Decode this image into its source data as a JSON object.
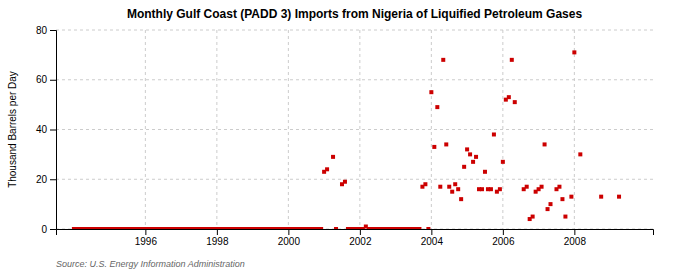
{
  "chart_data": {
    "type": "scatter",
    "title": "Monthly Gulf Coast (PADD 3) Imports from Nigeria of Liquified Petroleum Gases",
    "y_label": "Thousand Barrels per Day",
    "source": "Source: U.S. Energy Information Administration",
    "color": "#cc0000",
    "marker": "square",
    "grid": true,
    "xlim": [
      1993.5,
      2010.2
    ],
    "ylim": [
      0,
      80
    ],
    "xticks": [
      1996,
      1998,
      2000,
      2002,
      2004,
      2006,
      2008
    ],
    "yticks": [
      0,
      20,
      40,
      60,
      80
    ],
    "x": [
      1994.0,
      1994.083,
      1994.167,
      1994.25,
      1994.333,
      1994.417,
      1994.5,
      1994.583,
      1994.667,
      1994.75,
      1994.833,
      1994.917,
      1995.0,
      1995.083,
      1995.167,
      1995.25,
      1995.333,
      1995.417,
      1995.5,
      1995.583,
      1995.667,
      1995.75,
      1995.833,
      1995.917,
      1996.0,
      1996.083,
      1996.167,
      1996.25,
      1996.333,
      1996.417,
      1996.5,
      1996.583,
      1996.667,
      1996.75,
      1996.833,
      1996.917,
      1997.0,
      1997.083,
      1997.167,
      1997.25,
      1997.333,
      1997.417,
      1997.5,
      1997.583,
      1997.667,
      1997.75,
      1997.833,
      1997.917,
      1998.0,
      1998.083,
      1998.167,
      1998.25,
      1998.333,
      1998.417,
      1998.5,
      1998.583,
      1998.667,
      1998.75,
      1998.833,
      1998.917,
      1999.0,
      1999.083,
      1999.167,
      1999.25,
      1999.333,
      1999.417,
      1999.5,
      1999.583,
      1999.667,
      1999.75,
      1999.833,
      1999.917,
      2000.0,
      2000.083,
      2000.167,
      2000.25,
      2000.333,
      2000.417,
      2000.5,
      2000.583,
      2000.667,
      2000.75,
      2000.833,
      2000.917,
      2001.0,
      2001.083,
      2001.25,
      2001.333,
      2001.5,
      2001.583,
      2001.667,
      2001.75,
      2001.833,
      2001.917,
      2002.0,
      2002.083,
      2002.167,
      2002.25,
      2002.333,
      2002.417,
      2002.5,
      2002.583,
      2002.667,
      2002.75,
      2002.833,
      2002.917,
      2003.0,
      2003.083,
      2003.167,
      2003.25,
      2003.333,
      2003.417,
      2003.5,
      2003.583,
      2003.667,
      2003.75,
      2003.833,
      2003.917,
      2004.0,
      2004.083,
      2004.167,
      2004.25,
      2004.333,
      2004.417,
      2004.5,
      2004.583,
      2004.667,
      2004.75,
      2004.833,
      2004.917,
      2005.0,
      2005.083,
      2005.167,
      2005.25,
      2005.333,
      2005.417,
      2005.5,
      2005.583,
      2005.667,
      2005.75,
      2005.833,
      2005.917,
      2006.0,
      2006.083,
      2006.167,
      2006.25,
      2006.333,
      2006.583,
      2006.667,
      2006.75,
      2006.833,
      2006.917,
      2007.0,
      2007.083,
      2007.167,
      2007.25,
      2007.333,
      2007.5,
      2007.583,
      2007.667,
      2007.75,
      2007.917,
      2008.0,
      2008.167,
      2008.75,
      2009.25
    ],
    "values": [
      0,
      0,
      0,
      0,
      0,
      0,
      0,
      0,
      0,
      0,
      0,
      0,
      0,
      0,
      0,
      0,
      0,
      0,
      0,
      0,
      0,
      0,
      0,
      0,
      0,
      0,
      0,
      0,
      0,
      0,
      0,
      0,
      0,
      0,
      0,
      0,
      0,
      0,
      0,
      0,
      0,
      0,
      0,
      0,
      0,
      0,
      0,
      0,
      0,
      0,
      0,
      0,
      0,
      0,
      0,
      0,
      0,
      0,
      0,
      0,
      0,
      0,
      0,
      0,
      0,
      0,
      0,
      0,
      0,
      0,
      0,
      0,
      0,
      0,
      0,
      0,
      0,
      0,
      0,
      0,
      0,
      0,
      0,
      0,
      23,
      24,
      29,
      0,
      18,
      19,
      0,
      0,
      0,
      0,
      0,
      0,
      1,
      0,
      0,
      0,
      0,
      0,
      0,
      0,
      0,
      0,
      0,
      0,
      0,
      0,
      0,
      0,
      0,
      0,
      0,
      17,
      18,
      0,
      55,
      33,
      49,
      17,
      68,
      34,
      17,
      15,
      18,
      16,
      12,
      25,
      32,
      30,
      27,
      29,
      16,
      16,
      23,
      16,
      16,
      38,
      15,
      16,
      27,
      52,
      53,
      68,
      51,
      16,
      17,
      4,
      5,
      15,
      16,
      17,
      34,
      8,
      10,
      16,
      17,
      12,
      5,
      13,
      71,
      30,
      13,
      13
    ]
  }
}
